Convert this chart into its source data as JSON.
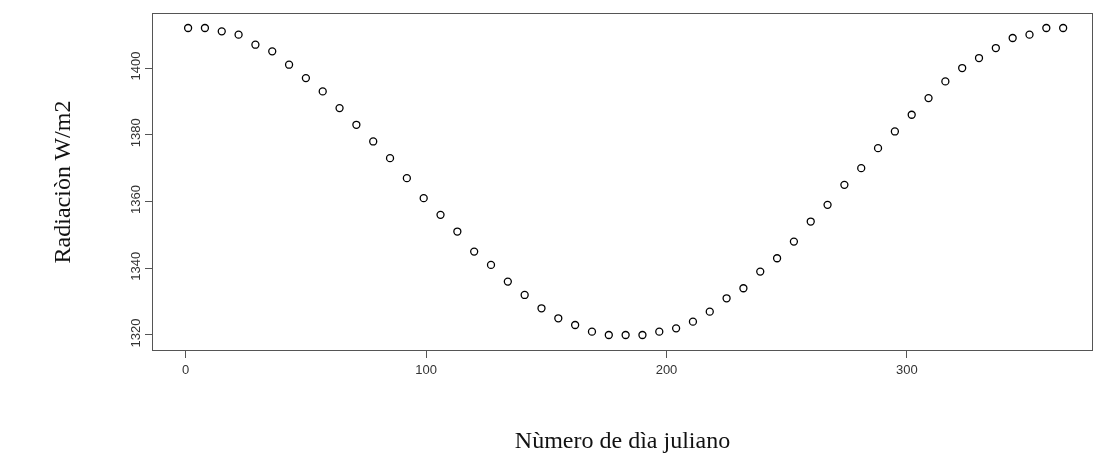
{
  "chart_data": {
    "type": "scatter",
    "xlabel": "Nùmero de dìa juliano",
    "ylabel": "Radiaciòn W/m2",
    "x": [
      1,
      8,
      15,
      22,
      29,
      36,
      43,
      50,
      57,
      64,
      71,
      78,
      85,
      92,
      99,
      106,
      113,
      120,
      127,
      134,
      141,
      148,
      155,
      162,
      169,
      176,
      183,
      190,
      197,
      204,
      211,
      218,
      225,
      232,
      239,
      246,
      253,
      260,
      267,
      274,
      281,
      288,
      295,
      302,
      309,
      316,
      323,
      330,
      337,
      344,
      351,
      358,
      365
    ],
    "series": [
      {
        "color": "#000000",
        "values": [
          1412,
          1412,
          1411,
          1410,
          1407,
          1405,
          1401,
          1397,
          1393,
          1388,
          1383,
          1378,
          1373,
          1367,
          1361,
          1356,
          1351,
          1345,
          1341,
          1336,
          1332,
          1328,
          1325,
          1323,
          1321,
          1320,
          1320,
          1320,
          1321,
          1322,
          1324,
          1327,
          1331,
          1334,
          1339,
          1343,
          1348,
          1354,
          1359,
          1365,
          1370,
          1376,
          1381,
          1386,
          1391,
          1396,
          1400,
          1403,
          1406,
          1409,
          1410,
          1412,
          1412
        ]
      }
    ],
    "xlim": [
      -13.6,
      377
    ],
    "ylim": [
      1315.5,
      1416.2
    ],
    "xticks": [
      0,
      100,
      200,
      300
    ],
    "yticks": [
      1320,
      1340,
      1360,
      1380,
      1400
    ],
    "grid": false,
    "marker": "circle"
  }
}
